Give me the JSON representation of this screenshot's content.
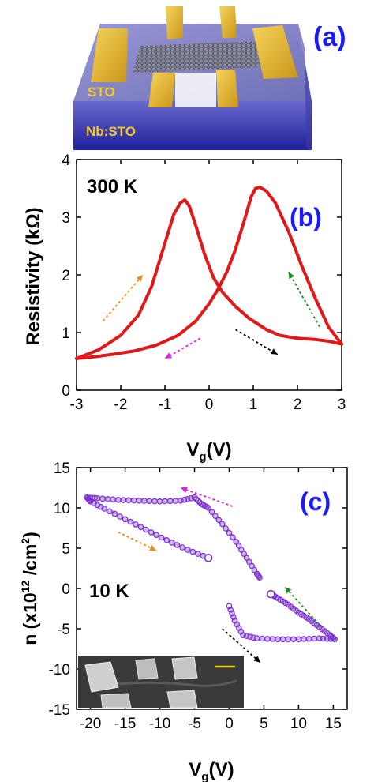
{
  "panel_a": {
    "label": "(a)",
    "top_layer": "STO",
    "bottom_layer": "Nb:STO",
    "colors": {
      "substrate_top": "#8c8ccc",
      "substrate_side": "#2a2aa8",
      "contact": "#e3b526",
      "graphene": "#5a5a6a",
      "label_text": "#f3c92c"
    }
  },
  "chart_data": [
    {
      "type": "line",
      "panel": "(b)",
      "annotation": "300 K",
      "xlabel": "V",
      "xlabel_sub": "g",
      "xlabel_unit": "(V)",
      "ylabel": "Resistivity (kΩ)",
      "xlim": [
        -3,
        3
      ],
      "ylim": [
        0,
        4
      ],
      "xticks": [
        -3,
        -2,
        -1,
        0,
        1,
        2,
        3
      ],
      "yticks": [
        0,
        1,
        2,
        3,
        4
      ],
      "color": "#e01818",
      "series": [
        {
          "x": [
            -3.0,
            -2.5,
            -2.0,
            -1.6,
            -1.3,
            -1.0,
            -0.8,
            -0.65,
            -0.55,
            -0.45,
            -0.3,
            -0.1,
            0.1,
            0.3,
            0.6,
            0.9,
            1.3,
            1.6,
            2.0,
            2.4,
            2.7,
            3.0
          ],
          "y": [
            0.55,
            0.7,
            0.95,
            1.3,
            1.8,
            2.55,
            3.05,
            3.25,
            3.3,
            3.2,
            2.85,
            2.35,
            1.95,
            1.7,
            1.45,
            1.25,
            1.05,
            0.95,
            0.9,
            0.88,
            0.85,
            0.8
          ]
        },
        {
          "x": [
            3.0,
            2.7,
            2.4,
            2.1,
            1.8,
            1.5,
            1.3,
            1.15,
            1.05,
            0.95,
            0.8,
            0.6,
            0.4,
            0.2,
            0.0,
            -0.3,
            -0.7,
            -1.2,
            -1.7,
            -2.2,
            -2.6,
            -3.0
          ],
          "y": [
            0.8,
            1.1,
            1.6,
            2.15,
            2.75,
            3.25,
            3.45,
            3.52,
            3.5,
            3.35,
            2.95,
            2.45,
            2.05,
            1.75,
            1.5,
            1.2,
            0.95,
            0.78,
            0.68,
            0.62,
            0.58,
            0.55
          ]
        }
      ],
      "arrows": [
        {
          "from": [
            -2.4,
            1.2
          ],
          "to": [
            -1.5,
            2.0
          ],
          "color": "#f08c1e"
        },
        {
          "from": [
            -0.2,
            0.9
          ],
          "to": [
            -1.0,
            0.55
          ],
          "color": "#e020e0"
        },
        {
          "from": [
            0.6,
            1.05
          ],
          "to": [
            1.55,
            0.62
          ],
          "color": "#000000"
        },
        {
          "from": [
            2.5,
            1.1
          ],
          "to": [
            1.8,
            2.05
          ],
          "color": "#228822"
        }
      ]
    },
    {
      "type": "scatter",
      "panel": "(c)",
      "annotation": "10 K",
      "xlabel": "V",
      "xlabel_sub": "g",
      "xlabel_unit": "(V)",
      "ylabel": "n (x10",
      "ylabel_sup": "12",
      "ylabel_mid": " /cm",
      "ylabel_sup2": "2",
      "ylabel_end": ")",
      "xlim": [
        -22,
        17
      ],
      "ylim": [
        -15,
        15
      ],
      "xticks": [
        -20,
        -15,
        -10,
        -5,
        0,
        5,
        10,
        15
      ],
      "yticks": [
        -15,
        -10,
        -5,
        0,
        5,
        10,
        15
      ],
      "color": "#7a2fd0",
      "series": [
        {
          "x": [
            -3.0,
            -6.0,
            -9.0,
            -12.0,
            -15.0,
            -18.0,
            -20.0,
            -20.5,
            -19.0,
            -16.0,
            -13.0,
            -10.0,
            -7.0,
            -5.0,
            -4.0,
            -3.0,
            -1.0,
            1.0,
            2.5,
            4.0,
            4.5
          ],
          "y": [
            3.8,
            4.8,
            6.0,
            7.3,
            8.6,
            9.9,
            10.8,
            11.3,
            11.2,
            11.0,
            10.9,
            10.8,
            10.9,
            11.3,
            10.5,
            10.0,
            8.0,
            5.8,
            3.8,
            1.8,
            1.2
          ]
        },
        {
          "x": [
            0.0,
            0.8,
            2.0,
            4.0,
            7.0,
            10.0,
            13.0,
            15.2,
            14.5,
            13.0,
            11.5,
            10.0,
            8.5,
            7.0,
            6.0
          ],
          "y": [
            -2.2,
            -4.0,
            -5.8,
            -6.2,
            -6.3,
            -6.3,
            -6.2,
            -6.3,
            -5.8,
            -4.8,
            -3.8,
            -3.0,
            -2.0,
            -1.2,
            -0.7
          ]
        }
      ],
      "open_markers": [
        {
          "x": -3.0,
          "y": 3.8
        },
        {
          "x": 6.0,
          "y": -0.7
        }
      ],
      "arrows": [
        {
          "from": [
            -16.0,
            7.0
          ],
          "to": [
            -10.5,
            4.7
          ],
          "color": "#f08c1e"
        },
        {
          "from": [
            0.5,
            10.2
          ],
          "to": [
            -7.0,
            12.5
          ],
          "color": "#e020e0"
        },
        {
          "from": [
            -1.0,
            -5.0
          ],
          "to": [
            4.5,
            -9.2
          ],
          "color": "#000000"
        },
        {
          "from": [
            13.0,
            -4.5
          ],
          "to": [
            8.0,
            0.2
          ],
          "color": "#228822"
        }
      ]
    }
  ]
}
